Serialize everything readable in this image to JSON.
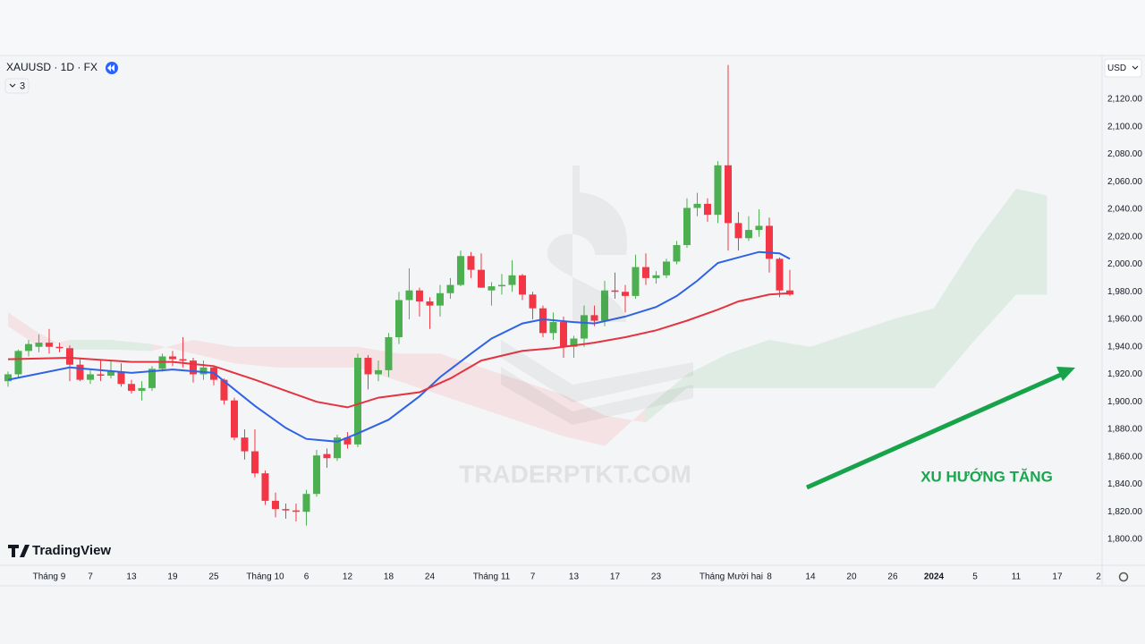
{
  "header": {
    "symbol": "XAUUSD · 1D · FX",
    "indicators_count": "3",
    "currency": "USD"
  },
  "branding": "TradingView",
  "chart_data": {
    "type": "candlestick",
    "watermark": "TRADERPTKT.COM",
    "annotation": {
      "text": "XU HƯỚNG TĂNG",
      "color": "#19a64f"
    },
    "up_color": "#4caf50",
    "down_color": "#f23645",
    "grid": false,
    "xlim": [
      -0.78,
      106.35
    ],
    "ylim": [
      1781.1,
      2151.9
    ],
    "yticks": [
      {
        "value": 1800,
        "label": "1,800.00"
      },
      {
        "value": 1820,
        "label": "1,820.00"
      },
      {
        "value": 1840,
        "label": "1,840.00"
      },
      {
        "value": 1860,
        "label": "1,860.00"
      },
      {
        "value": 1880,
        "label": "1,880.00"
      },
      {
        "value": 1900,
        "label": "1,900.00"
      },
      {
        "value": 1920,
        "label": "1,920.00"
      },
      {
        "value": 1940,
        "label": "1,940.00"
      },
      {
        "value": 1960,
        "label": "1,960.00"
      },
      {
        "value": 1980,
        "label": "1,980.00"
      },
      {
        "value": 2000,
        "label": "2,000.00"
      },
      {
        "value": 2020,
        "label": "2,020.00"
      },
      {
        "value": 2040,
        "label": "2,040.00"
      },
      {
        "value": 2060,
        "label": "2,060.00"
      },
      {
        "value": 2080,
        "label": "2,080.00"
      },
      {
        "value": 2100,
        "label": "2,100.00"
      },
      {
        "value": 2120,
        "label": "2,120.00"
      }
    ],
    "xticks": [
      {
        "value": 4,
        "label": "Tháng 9"
      },
      {
        "value": 8,
        "label": "7"
      },
      {
        "value": 12,
        "label": "13"
      },
      {
        "value": 16,
        "label": "19"
      },
      {
        "value": 20,
        "label": "25"
      },
      {
        "value": 25,
        "label": "Tháng 10"
      },
      {
        "value": 29,
        "label": "6"
      },
      {
        "value": 33,
        "label": "12"
      },
      {
        "value": 37,
        "label": "18"
      },
      {
        "value": 41,
        "label": "24"
      },
      {
        "value": 47,
        "label": "Tháng 11"
      },
      {
        "value": 51,
        "label": "7"
      },
      {
        "value": 55,
        "label": "13"
      },
      {
        "value": 59,
        "label": "17"
      },
      {
        "value": 63,
        "label": "23"
      },
      {
        "value": 70.3,
        "label": "Tháng Mười hai"
      },
      {
        "value": 74,
        "label": "8"
      },
      {
        "value": 78,
        "label": "14"
      },
      {
        "value": 82,
        "label": "20"
      },
      {
        "value": 86,
        "label": "26"
      },
      {
        "value": 90,
        "label": "2024"
      },
      {
        "value": 94,
        "label": "5"
      },
      {
        "value": 98,
        "label": "11"
      },
      {
        "value": 102,
        "label": "17"
      },
      {
        "value": 106,
        "label": "2"
      }
    ],
    "x": [
      0,
      1,
      2,
      3,
      4,
      5,
      6,
      7,
      8,
      9,
      10,
      11,
      12,
      13,
      14,
      15,
      16,
      17,
      18,
      19,
      20,
      21,
      22,
      23,
      24,
      25,
      26,
      27,
      28,
      29,
      30,
      31,
      32,
      33,
      34,
      35,
      36,
      37,
      38,
      39,
      40,
      41,
      42,
      43,
      44,
      45,
      46,
      47,
      48,
      49,
      50,
      51,
      52,
      53,
      54,
      55,
      56,
      57,
      58,
      59,
      60,
      61,
      62,
      63,
      64,
      65,
      66,
      67,
      68,
      69,
      70,
      71,
      72,
      73,
      74,
      75,
      76
    ],
    "open": [
      1915,
      1920,
      1937,
      1940,
      1943,
      1940,
      1939,
      1927,
      1916,
      1920,
      1919,
      1922,
      1913,
      1908,
      1910,
      1924,
      1933,
      1931,
      1930,
      1920,
      1925,
      1916,
      1901,
      1874,
      1864,
      1848,
      1828,
      1822,
      1821,
      1820,
      1833,
      1862,
      1859,
      1874,
      1869,
      1932,
      1920,
      1923,
      1947,
      1974,
      1981,
      1973,
      1970,
      1979,
      1985,
      2006,
      1996,
      1981,
      1984,
      1985,
      1992,
      1978,
      1968,
      1950,
      1958,
      1940,
      1946,
      1963,
      1959,
      1981,
      1980,
      1977,
      1998,
      1990,
      1992,
      2002,
      2014,
      2041,
      2044,
      2036,
      2072,
      2030,
      2019,
      2025,
      2028,
      2004,
      1981
    ],
    "high": [
      1922,
      1938,
      1945,
      1949,
      1953,
      1943,
      1941,
      1931,
      1923,
      1930,
      1930,
      1928,
      1916,
      1915,
      1926,
      1935,
      1937,
      1947,
      1932,
      1930,
      1926,
      1917,
      1903,
      1880,
      1880,
      1850,
      1834,
      1826,
      1826,
      1836,
      1865,
      1866,
      1876,
      1878,
      1935,
      1934,
      1930,
      1950,
      1980,
      1997,
      1983,
      1976,
      1985,
      1990,
      2010,
      2009,
      2008,
      1987,
      1993,
      2003,
      1993,
      1980,
      1970,
      1965,
      1962,
      1948,
      1970,
      1970,
      1988,
      1994,
      1985,
      2007,
      2008,
      1995,
      2004,
      2017,
      2048,
      2052,
      2048,
      2075,
      2145,
      2038,
      2035,
      2040,
      2034,
      2005,
      1996
    ],
    "low": [
      1911,
      1917,
      1933,
      1936,
      1935,
      1936,
      1915,
      1915,
      1913,
      1915,
      1917,
      1911,
      1906,
      1901,
      1908,
      1922,
      1926,
      1925,
      1914,
      1916,
      1912,
      1898,
      1872,
      1858,
      1845,
      1825,
      1816,
      1815,
      1813,
      1810,
      1831,
      1852,
      1857,
      1866,
      1867,
      1909,
      1915,
      1918,
      1942,
      1960,
      1962,
      1953,
      1962,
      1975,
      1984,
      1990,
      1983,
      1970,
      1978,
      1980,
      1974,
      1960,
      1947,
      1945,
      1932,
      1932,
      1940,
      1955,
      1955,
      1975,
      1965,
      1975,
      1985,
      1986,
      1990,
      2000,
      2012,
      2035,
      2031,
      2030,
      2010,
      2010,
      2017,
      2020,
      1994,
      1976,
      1977
    ],
    "close": [
      1920,
      1937,
      1942,
      1943,
      1940,
      1939,
      1927,
      1916,
      1920,
      1919,
      1922,
      1913,
      1908,
      1910,
      1924,
      1933,
      1931,
      1930,
      1920,
      1925,
      1916,
      1901,
      1874,
      1864,
      1848,
      1828,
      1822,
      1821,
      1820,
      1833,
      1861,
      1859,
      1874,
      1869,
      1932,
      1920,
      1923,
      1947,
      1974,
      1981,
      1973,
      1970,
      1979,
      1985,
      2006,
      1996,
      1983,
      1984,
      1985,
      1992,
      1978,
      1968,
      1950,
      1958,
      1940,
      1946,
      1963,
      1959,
      1981,
      1980,
      1977,
      1998,
      1990,
      1992,
      2002,
      2014,
      2041,
      2044,
      2036,
      2072,
      2030,
      2019,
      2025,
      2028,
      2004,
      1981,
      1978
    ],
    "lines": [
      {
        "color": "#2f63e6",
        "x": [
          0,
          6,
          12,
          16,
          20,
          24,
          27,
          29,
          32,
          34,
          37,
          40,
          42,
          45,
          47,
          50,
          52,
          55,
          57,
          60,
          63,
          65,
          67,
          69,
          71,
          73,
          75,
          76
        ],
        "values": [
          1916,
          1925,
          1921,
          1923.5,
          1921,
          1897,
          1881,
          1873,
          1871,
          1877,
          1887,
          1904,
          1918,
          1935,
          1946,
          1957,
          1960,
          1958,
          1957,
          1962,
          1969,
          1977,
          1988,
          2001,
          2005,
          2009,
          2008,
          2004
        ]
      },
      {
        "color": "#e5333f",
        "x": [
          0,
          6,
          12,
          16,
          20,
          24,
          27,
          30,
          33,
          36,
          40,
          43,
          46,
          50,
          53,
          57,
          60,
          63,
          66,
          69,
          71,
          74,
          76
        ],
        "values": [
          1931,
          1932,
          1929,
          1929,
          1926,
          1916,
          1908,
          1900,
          1896,
          1903,
          1907,
          1917,
          1930,
          1937,
          1939,
          1943,
          1947,
          1952,
          1959,
          1967,
          1973,
          1978,
          1979
        ]
      }
    ],
    "cloud": {
      "up_color": "rgba(76,175,80,0.12)",
      "down_color": "rgba(242,54,69,0.10)",
      "x": [
        0,
        3,
        6,
        10,
        14,
        18,
        22,
        26,
        30,
        34,
        38,
        42,
        46,
        50,
        54,
        58,
        62,
        66,
        70,
        74,
        78,
        82,
        86,
        90,
        94,
        98,
        101
      ],
      "span_a": [
        1955,
        1940,
        1945,
        1945,
        1942,
        1935,
        1928,
        1925,
        1925,
        1925,
        1915,
        1905,
        1895,
        1885,
        1875,
        1868,
        1895,
        1920,
        1935,
        1945,
        1940,
        1950,
        1960,
        1968,
        2015,
        2055,
        2050
      ],
      "span_b": [
        1965,
        1950,
        1938,
        1938,
        1937,
        1945,
        1940,
        1940,
        1940,
        1940,
        1935,
        1935,
        1925,
        1915,
        1905,
        1890,
        1885,
        1910,
        1910,
        1910,
        1910,
        1910,
        1910,
        1910,
        1945,
        1978,
        1978
      ]
    }
  }
}
